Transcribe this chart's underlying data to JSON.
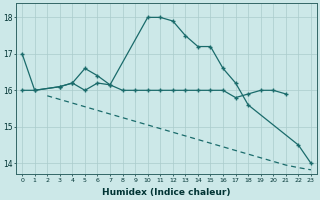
{
  "xlabel": "Humidex (Indice chaleur)",
  "bg_color": "#cce8e8",
  "grid_color": "#aacccc",
  "line_color": "#1a6b6b",
  "x_values": [
    0,
    1,
    2,
    3,
    4,
    5,
    6,
    7,
    8,
    9,
    10,
    11,
    12,
    13,
    14,
    15,
    16,
    17,
    18,
    19,
    20,
    21,
    22,
    23
  ],
  "line1": [
    17.0,
    16.0,
    null,
    16.1,
    16.2,
    16.6,
    16.4,
    16.15,
    null,
    null,
    18.0,
    18.0,
    17.9,
    17.5,
    17.2,
    17.2,
    16.6,
    16.2,
    15.6,
    null,
    null,
    null,
    14.5,
    14.0
  ],
  "line2_x": [
    0,
    1,
    3,
    4,
    5,
    6,
    7,
    8,
    9,
    10,
    11,
    12,
    13,
    14,
    15,
    16,
    17,
    18,
    19,
    20,
    21
  ],
  "line2_y": [
    16.0,
    16.0,
    16.1,
    16.2,
    16.0,
    16.2,
    16.15,
    16.0,
    16.0,
    16.0,
    16.0,
    16.0,
    16.0,
    16.0,
    16.0,
    16.0,
    15.8,
    15.9,
    16.0,
    16.0,
    15.9
  ],
  "line3_x": [
    2,
    3,
    4,
    5,
    6,
    7,
    8,
    9,
    10,
    11,
    12,
    13,
    14,
    15,
    16,
    17,
    18,
    19,
    20,
    21,
    22,
    23
  ],
  "line3_y": [
    15.85,
    15.75,
    15.65,
    15.55,
    15.45,
    15.35,
    15.25,
    15.15,
    15.05,
    14.95,
    14.85,
    14.75,
    14.65,
    14.55,
    14.45,
    14.35,
    14.25,
    14.15,
    14.05,
    13.95,
    13.88,
    13.82
  ],
  "ylim": [
    13.7,
    18.4
  ],
  "yticks": [
    14,
    15,
    16,
    17,
    18
  ],
  "xlim": [
    -0.5,
    23.5
  ]
}
